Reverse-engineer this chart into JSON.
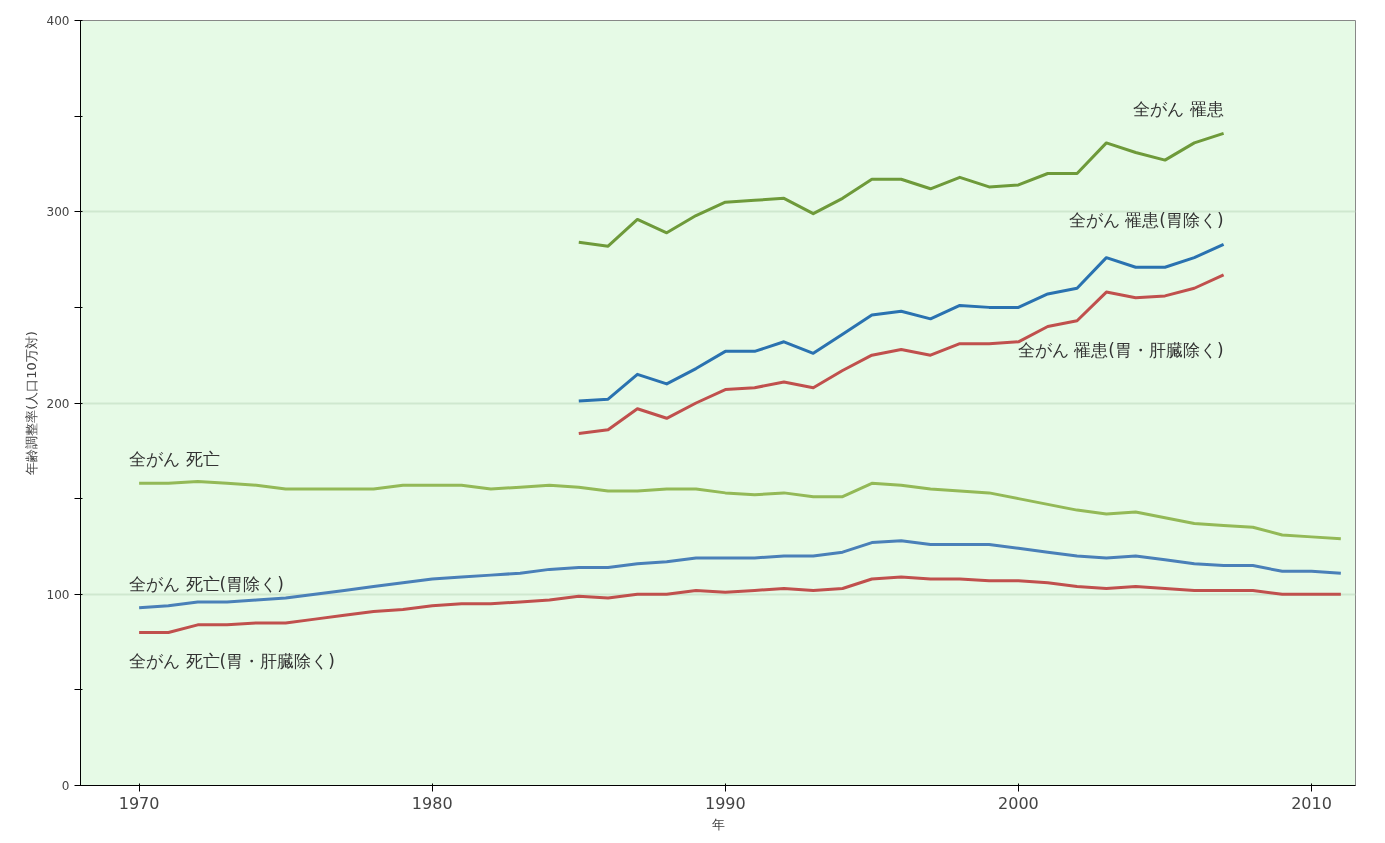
{
  "chart_data": {
    "type": "line",
    "xlabel": "年",
    "ylabel": "年齢調整率(人口10万対)",
    "xlim": [
      1968,
      2011.5
    ],
    "xticks": [
      1970,
      1980,
      1990,
      2000,
      2010
    ],
    "ylim": [
      0,
      400
    ],
    "yticks": [
      0,
      {
        "value": 50,
        "label": null
      },
      100,
      {
        "value": 150,
        "label": null
      },
      200,
      {
        "value": 250,
        "label": null
      },
      300,
      {
        "value": 350,
        "label": null
      },
      400
    ],
    "grid": "y",
    "line_style": "solid",
    "marker": "none",
    "series": [
      {
        "name": "全がん 罹患",
        "color": "#6e9a3a",
        "x": [
          1985,
          1986,
          1987,
          1988,
          1989,
          1990,
          1991,
          1992,
          1993,
          1994,
          1995,
          1996,
          1997,
          1998,
          1999,
          2000,
          2001,
          2002,
          2003,
          2004,
          2005,
          2006,
          2007
        ],
        "values": [
          284,
          282,
          296,
          289,
          298,
          305,
          306,
          307,
          299,
          307,
          317,
          317,
          312,
          318,
          313,
          314,
          320,
          320,
          336,
          331,
          327,
          336,
          341
        ]
      },
      {
        "name": "全がん 罹患(胃除く)",
        "color": "#2a72b0",
        "x": [
          1985,
          1986,
          1987,
          1988,
          1989,
          1990,
          1991,
          1992,
          1993,
          1994,
          1995,
          1996,
          1997,
          1998,
          1999,
          2000,
          2001,
          2002,
          2003,
          2004,
          2005,
          2006,
          2007
        ],
        "values": [
          201,
          202,
          215,
          210,
          218,
          227,
          227,
          232,
          226,
          236,
          246,
          248,
          244,
          251,
          250,
          250,
          257,
          260,
          276,
          271,
          271,
          276,
          283
        ]
      },
      {
        "name": "全がん 罹患(胃・肝臓除く)",
        "color": "#c0504d",
        "x": [
          1985,
          1986,
          1987,
          1988,
          1989,
          1990,
          1991,
          1992,
          1993,
          1994,
          1995,
          1996,
          1997,
          1998,
          1999,
          2000,
          2001,
          2002,
          2003,
          2004,
          2005,
          2006,
          2007
        ],
        "values": [
          184,
          186,
          197,
          192,
          200,
          207,
          208,
          211,
          208,
          217,
          225,
          228,
          225,
          231,
          231,
          232,
          240,
          243,
          258,
          255,
          256,
          260,
          267
        ]
      },
      {
        "name": "全がん 死亡",
        "color": "#93b957",
        "x": [
          1970,
          1971,
          1972,
          1973,
          1974,
          1975,
          1976,
          1977,
          1978,
          1979,
          1980,
          1981,
          1982,
          1983,
          1984,
          1985,
          1986,
          1987,
          1988,
          1989,
          1990,
          1991,
          1992,
          1993,
          1994,
          1995,
          1996,
          1997,
          1998,
          1999,
          2000,
          2001,
          2002,
          2003,
          2004,
          2005,
          2006,
          2007,
          2008,
          2009,
          2010,
          2011
        ],
        "values": [
          158,
          158,
          159,
          158,
          157,
          155,
          155,
          155,
          155,
          157,
          157,
          157,
          155,
          156,
          157,
          156,
          154,
          154,
          155,
          155,
          153,
          152,
          153,
          151,
          151,
          158,
          157,
          155,
          154,
          153,
          150,
          147,
          144,
          142,
          143,
          140,
          137,
          136,
          135,
          131,
          130,
          129
        ]
      },
      {
        "name": "全がん 死亡(胃除く)",
        "color": "#4a80b8",
        "x": [
          1970,
          1971,
          1972,
          1973,
          1974,
          1975,
          1976,
          1977,
          1978,
          1979,
          1980,
          1981,
          1982,
          1983,
          1984,
          1985,
          1986,
          1987,
          1988,
          1989,
          1990,
          1991,
          1992,
          1993,
          1994,
          1995,
          1996,
          1997,
          1998,
          1999,
          2000,
          2001,
          2002,
          2003,
          2004,
          2005,
          2006,
          2007,
          2008,
          2009,
          2010,
          2011
        ],
        "values": [
          93,
          94,
          96,
          96,
          97,
          98,
          100,
          102,
          104,
          106,
          108,
          109,
          110,
          111,
          113,
          114,
          114,
          116,
          117,
          119,
          119,
          119,
          120,
          120,
          122,
          127,
          128,
          126,
          126,
          126,
          124,
          122,
          120,
          119,
          120,
          118,
          116,
          115,
          115,
          112,
          112,
          111
        ]
      },
      {
        "name": "全がん 死亡(胃・肝臓除く)",
        "color": "#c0504d",
        "x": [
          1970,
          1971,
          1972,
          1973,
          1974,
          1975,
          1976,
          1977,
          1978,
          1979,
          1980,
          1981,
          1982,
          1983,
          1984,
          1985,
          1986,
          1987,
          1988,
          1989,
          1990,
          1991,
          1992,
          1993,
          1994,
          1995,
          1996,
          1997,
          1998,
          1999,
          2000,
          2001,
          2002,
          2003,
          2004,
          2005,
          2006,
          2007,
          2008,
          2009,
          2010,
          2011
        ],
        "values": [
          80,
          80,
          84,
          84,
          85,
          85,
          87,
          89,
          91,
          92,
          94,
          95,
          95,
          96,
          97,
          99,
          98,
          100,
          100,
          102,
          101,
          102,
          103,
          102,
          103,
          108,
          109,
          108,
          108,
          107,
          107,
          106,
          104,
          103,
          104,
          103,
          102,
          102,
          102,
          100,
          100,
          100
        ]
      }
    ]
  }
}
